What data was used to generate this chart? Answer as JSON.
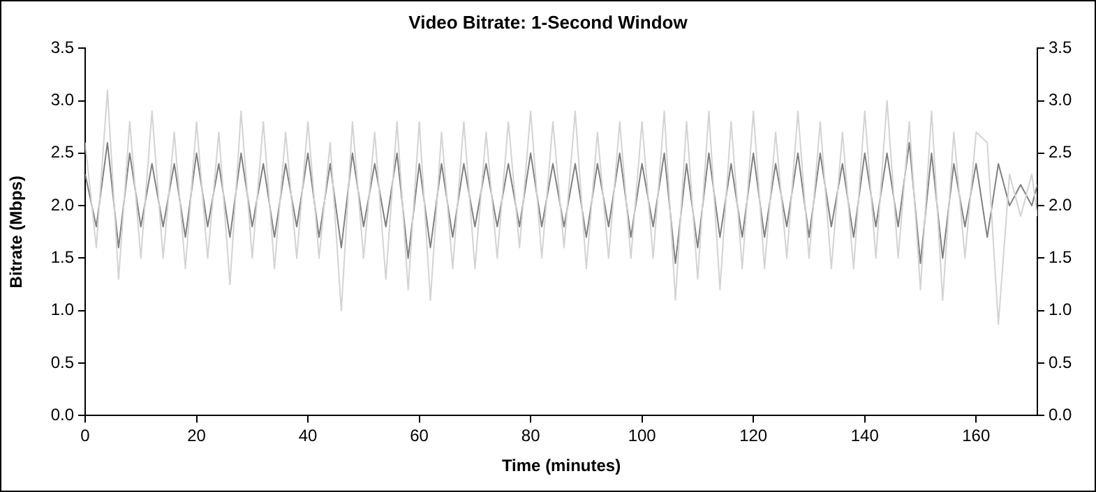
{
  "chart_data": {
    "type": "line",
    "title": "Video Bitrate: 1-Second Window",
    "xlabel": "Time (minutes)",
    "ylabel": "Bitrate (Mbps)",
    "x": [
      0,
      2,
      4,
      6,
      8,
      10,
      12,
      14,
      16,
      18,
      20,
      22,
      24,
      26,
      28,
      30,
      32,
      34,
      36,
      38,
      40,
      42,
      44,
      46,
      48,
      50,
      52,
      54,
      56,
      58,
      60,
      62,
      64,
      66,
      68,
      70,
      72,
      74,
      76,
      78,
      80,
      82,
      84,
      86,
      88,
      90,
      92,
      94,
      96,
      98,
      100,
      102,
      104,
      106,
      108,
      110,
      112,
      114,
      116,
      118,
      120,
      122,
      124,
      126,
      128,
      130,
      132,
      134,
      136,
      138,
      140,
      142,
      144,
      146,
      148,
      150,
      152,
      154,
      156,
      158,
      160,
      162,
      164,
      166,
      168,
      170,
      171
    ],
    "series": [
      {
        "color": "#d3d3d3",
        "values": [
          2.6,
          1.6,
          3.1,
          1.3,
          2.8,
          1.5,
          2.9,
          1.5,
          2.7,
          1.4,
          2.8,
          1.5,
          2.7,
          1.25,
          2.9,
          1.5,
          2.8,
          1.4,
          2.7,
          1.5,
          2.8,
          1.5,
          2.6,
          1.0,
          2.8,
          1.5,
          2.7,
          1.3,
          2.8,
          1.2,
          2.8,
          1.1,
          2.7,
          1.4,
          2.8,
          1.4,
          2.7,
          1.5,
          2.8,
          1.6,
          2.9,
          1.5,
          2.8,
          1.6,
          2.9,
          1.4,
          2.7,
          1.5,
          2.8,
          1.5,
          2.8,
          1.5,
          2.9,
          1.1,
          2.8,
          1.3,
          2.9,
          1.2,
          2.8,
          1.4,
          2.9,
          1.4,
          2.7,
          1.5,
          2.9,
          1.5,
          2.8,
          1.4,
          2.7,
          1.4,
          2.9,
          1.5,
          3.0,
          1.5,
          2.8,
          1.2,
          2.9,
          1.1,
          2.7,
          1.5,
          2.7,
          2.6,
          0.87,
          2.3,
          1.9,
          2.3,
          1.9
        ]
      },
      {
        "color": "#808080",
        "values": [
          2.3,
          1.8,
          2.6,
          1.6,
          2.5,
          1.8,
          2.4,
          1.8,
          2.4,
          1.7,
          2.5,
          1.8,
          2.4,
          1.7,
          2.5,
          1.8,
          2.4,
          1.7,
          2.4,
          1.8,
          2.5,
          1.7,
          2.4,
          1.6,
          2.5,
          1.8,
          2.4,
          1.8,
          2.5,
          1.5,
          2.4,
          1.6,
          2.4,
          1.7,
          2.4,
          1.8,
          2.4,
          1.8,
          2.4,
          1.8,
          2.5,
          1.8,
          2.4,
          1.8,
          2.4,
          1.7,
          2.4,
          1.8,
          2.5,
          1.7,
          2.4,
          1.8,
          2.5,
          1.45,
          2.4,
          1.6,
          2.5,
          1.7,
          2.4,
          1.7,
          2.5,
          1.7,
          2.4,
          1.8,
          2.5,
          1.7,
          2.5,
          1.8,
          2.4,
          1.7,
          2.5,
          1.8,
          2.5,
          1.8,
          2.6,
          1.45,
          2.5,
          1.5,
          2.4,
          1.8,
          2.4,
          1.7,
          2.4,
          2.0,
          2.2,
          2.0,
          2.2
        ]
      }
    ],
    "xlim": [
      0,
      171
    ],
    "xticks": [
      0,
      20,
      40,
      60,
      80,
      100,
      120,
      140,
      160
    ],
    "ylim": [
      0,
      3.5
    ],
    "yticks": [
      {
        "value": 0,
        "label": "0.0"
      },
      {
        "value": 0.5,
        "label": "0.5"
      },
      {
        "value": 1,
        "label": "1.0"
      },
      {
        "value": 1.5,
        "label": "1.5"
      },
      {
        "value": 2,
        "label": "2.0"
      },
      {
        "value": 2.5,
        "label": "2.5"
      },
      {
        "value": 3,
        "label": "3.0"
      },
      {
        "value": 3.5,
        "label": "3.5"
      }
    ],
    "y2lim": [
      0,
      3.5
    ],
    "y2ticks": [
      {
        "value": 0,
        "label": "0.0"
      },
      {
        "value": 0.5,
        "label": "0.5"
      },
      {
        "value": 1,
        "label": "1.0"
      },
      {
        "value": 1.5,
        "label": "1.5"
      },
      {
        "value": 2,
        "label": "2.0"
      },
      {
        "value": 2.5,
        "label": "2.5"
      },
      {
        "value": 3,
        "label": "3.0"
      },
      {
        "value": 3.5,
        "label": "3.5"
      }
    ],
    "grid": false,
    "legend": false,
    "marker": "none",
    "line_style": "solid"
  }
}
